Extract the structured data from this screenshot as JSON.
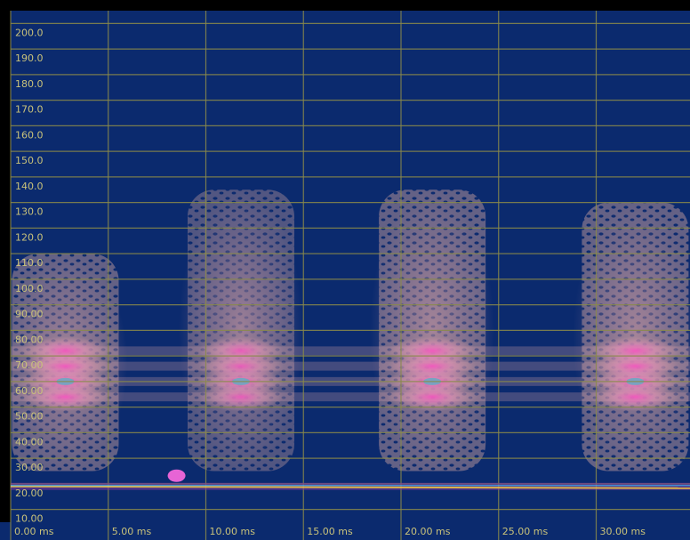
{
  "chart_data": {
    "type": "heatmap",
    "title": "",
    "xlabel": "",
    "ylabel": "",
    "x_tick_labels": [
      "0.00 ms",
      "5.00 ms",
      "10.00 ms",
      "15.00 ms",
      "20.00 ms",
      "25.00 ms",
      "30.00 ms"
    ],
    "x_ticks_ms": [
      0,
      5,
      10,
      15,
      20,
      25,
      30
    ],
    "y_tick_labels": [
      "10.00",
      "20.00",
      "30.00",
      "40.00",
      "50.00",
      "60.00",
      "70.00",
      "80.00",
      "90.00",
      "100.0",
      "110.0",
      "120.0",
      "130.0",
      "140.0",
      "150.0",
      "160.0",
      "170.0",
      "180.0",
      "190.0",
      "200.0"
    ],
    "y_ticks": [
      10,
      20,
      30,
      40,
      50,
      60,
      70,
      80,
      90,
      100,
      110,
      120,
      130,
      140,
      150,
      160,
      170,
      180,
      190,
      200
    ],
    "xlim": [
      0,
      35
    ],
    "ylim": [
      5,
      205
    ],
    "grid": true,
    "colors": {
      "background": "#0b2a6e",
      "grid": "#8a8a4a",
      "tick_label": "#c9c27a",
      "low": "#0b2a6e",
      "mid": "#d9a0a8",
      "high": "#ff3cc8",
      "peak": "#2fb5d0"
    },
    "bursts": [
      {
        "center_ms": 2.8,
        "y_top": 110,
        "intensity": 1.0
      },
      {
        "center_ms": 11.8,
        "y_top": 135,
        "intensity": 0.8
      },
      {
        "center_ms": 21.6,
        "y_top": 135,
        "intensity": 1.0
      },
      {
        "center_ms": 32.0,
        "y_top": 130,
        "intensity": 1.0
      }
    ],
    "bands_value": [
      54,
      60,
      66,
      72
    ],
    "baseline": {
      "y_value": 19,
      "highlight_ms": 8.5
    }
  }
}
